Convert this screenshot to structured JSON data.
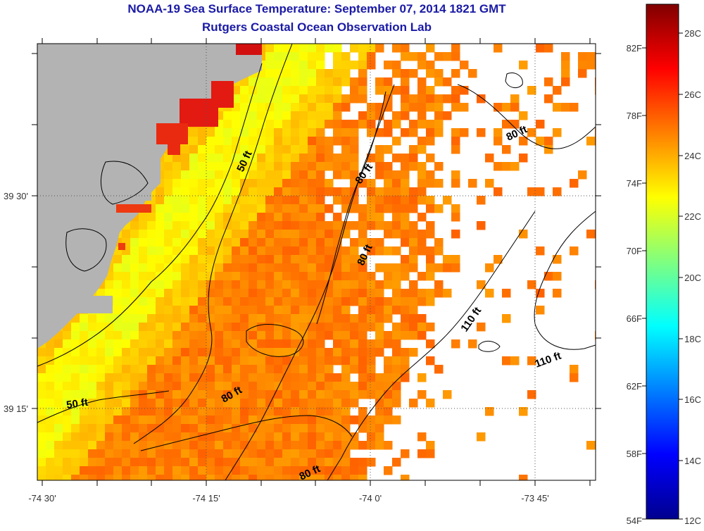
{
  "header": {
    "title": "NOAA-19 Sea Surface Temperature:  September 07, 2014 1821 GMT",
    "subtitle": "Rutgers Coastal Ocean Observation Lab"
  },
  "axes": {
    "lon_ticks": [
      {
        "label": "-74 30'",
        "lon": -74.5
      },
      {
        "label": "-74 15'",
        "lon": -74.25
      },
      {
        "label": "-74 0'",
        "lon": -74.0
      },
      {
        "label": "-73 45'",
        "lon": -73.75
      }
    ],
    "lat_ticks": [
      {
        "label": "39 30'",
        "lat": 39.5
      },
      {
        "label": "39 15'",
        "lat": 39.25
      }
    ]
  },
  "depth_contour_labels": [
    "50 ft",
    "80 ft",
    "110 ft"
  ],
  "colorbar": {
    "colormap": "jet",
    "range_c": [
      12,
      29
    ],
    "fahrenheit_labels": [
      "82F",
      "78F",
      "74F",
      "70F",
      "66F",
      "62F",
      "58F",
      "54F"
    ],
    "celsius_labels": [
      "28C",
      "26C",
      "24C",
      "22C",
      "20C",
      "18C",
      "16C",
      "14C",
      "12C"
    ]
  },
  "colors": {
    "title": "#1a1aa6",
    "land": "#b3b3b3",
    "no_data": "#ffffff",
    "contour": "#000000"
  }
}
